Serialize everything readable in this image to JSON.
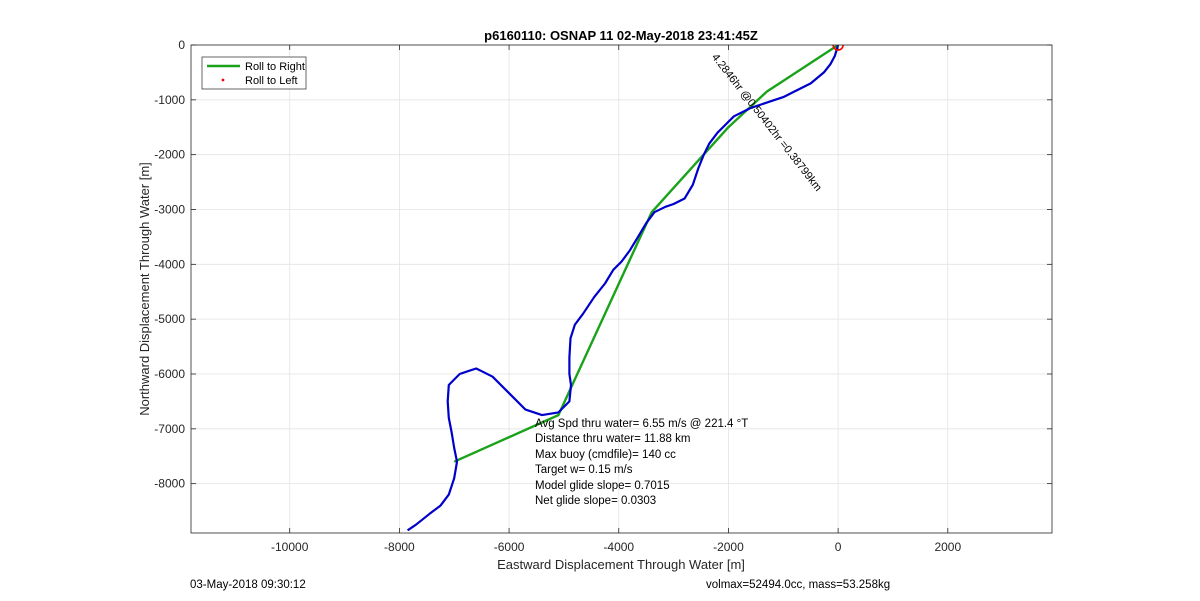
{
  "chart_data": {
    "type": "line",
    "title": "p6160110: OSNAP 11 02-May-2018 23:41:45Z",
    "xlabel": "Eastward Displacement Through Water [m]",
    "ylabel": "Northward Displacement Through Water [m]",
    "xlim": [
      -11800,
      3900
    ],
    "ylim": [
      -8900,
      0
    ],
    "xticks": [
      -10000,
      -8000,
      -6000,
      -4000,
      -2000,
      0,
      2000
    ],
    "xtick_labels": [
      "-10000",
      "-8000",
      "-6000",
      "-4000",
      "-2000",
      "0",
      "2000"
    ],
    "yticks": [
      0,
      -1000,
      -2000,
      -3000,
      -4000,
      -5000,
      -6000,
      -7000,
      -8000
    ],
    "ytick_labels": [
      "0",
      "-1000",
      "-2000",
      "-3000",
      "-4000",
      "-5000",
      "-6000",
      "-7000",
      "-8000"
    ],
    "grid": true,
    "legend_position": "top-left",
    "series": [
      {
        "name": "Roll to Right",
        "color": "#1aa31a",
        "style": "line",
        "x": [
          0,
          -1300,
          -2000,
          -3400,
          -5100,
          -7000
        ],
        "y": [
          0,
          -850,
          -1500,
          -3050,
          -6750,
          -7600
        ]
      },
      {
        "name": "Roll to Left",
        "color": "#ff0000",
        "style": "marker",
        "x": [],
        "y": []
      },
      {
        "name": "",
        "color": "#0000cc",
        "style": "line",
        "x": [
          0,
          -60,
          -140,
          -260,
          -380,
          -500,
          -600,
          -800,
          -1000,
          -1300,
          -1600,
          -1900,
          -2050,
          -2200,
          -2350,
          -2450,
          -2550,
          -2650,
          -2800,
          -3000,
          -3150,
          -3350,
          -3500,
          -3650,
          -3800,
          -3950,
          -4100,
          -4250,
          -4450,
          -4650,
          -4800,
          -4880,
          -4900,
          -4900,
          -4870,
          -4900,
          -5100,
          -5400,
          -5700,
          -6000,
          -6300,
          -6500,
          -6600,
          -6750,
          -6900,
          -7000,
          -7100,
          -7120,
          -7100,
          -7050,
          -7000,
          -6950,
          -7000,
          -7100,
          -7250,
          -7450,
          -7700,
          -7850
        ],
        "y": [
          0,
          -200,
          -350,
          -500,
          -600,
          -700,
          -750,
          -850,
          -950,
          -1050,
          -1150,
          -1300,
          -1450,
          -1600,
          -1800,
          -2000,
          -2250,
          -2550,
          -2800,
          -2900,
          -2950,
          -3050,
          -3250,
          -3500,
          -3750,
          -3950,
          -4100,
          -4350,
          -4600,
          -4900,
          -5100,
          -5350,
          -5700,
          -6000,
          -6200,
          -6500,
          -6700,
          -6750,
          -6650,
          -6350,
          -6050,
          -5950,
          -5900,
          -5950,
          -6000,
          -6100,
          -6200,
          -6500,
          -6800,
          -7050,
          -7350,
          -7600,
          -7900,
          -8200,
          -8400,
          -8550,
          -8750,
          -8850
        ]
      }
    ],
    "start_marker": {
      "x": 0,
      "y": 0,
      "color": "#ff0000"
    },
    "annotation": {
      "text": "4.2846hr @0.50402hr =0.38799km",
      "x": -1350,
      "y": -1450,
      "angle": 52
    },
    "info_lines": [
      "Avg Spd thru water=  6.55 m/s @ 221.4 °T",
      "Distance thru water= 11.88 km",
      "Max buoy (cmdfile)= 140 cc",
      "Target w= 0.15 m/s",
      "Model glide slope= 0.7015",
      "Net glide slope= 0.0303"
    ]
  },
  "footer": {
    "left": "03-May-2018 09:30:12",
    "right": "volmax=52494.0cc, mass=53.258kg"
  }
}
